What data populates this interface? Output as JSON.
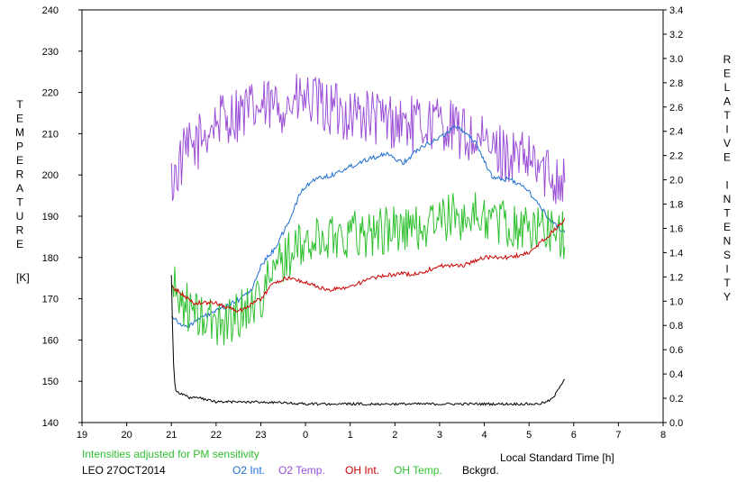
{
  "chart_data": {
    "type": "line",
    "x_ticks": [
      "19",
      "20",
      "21",
      "22",
      "23",
      "0",
      "1",
      "2",
      "3",
      "4",
      "5",
      "6",
      "7",
      "8"
    ],
    "y_left_ticks": [
      "140",
      "150",
      "160",
      "170",
      "180",
      "190",
      "200",
      "210",
      "220",
      "230",
      "240"
    ],
    "y_right_ticks": [
      "0.0",
      "0.2",
      "0.4",
      "0.6",
      "0.8",
      "1.0",
      "1.2",
      "1.4",
      "1.6",
      "1.8",
      "2.0",
      "2.2",
      "2.4",
      "2.6",
      "2.8",
      "3.0",
      "3.2",
      "3.4"
    ],
    "x_range": [
      19,
      32
    ],
    "y_left_range": [
      140,
      240
    ],
    "y_right_range": [
      0,
      3.4
    ],
    "left_label": "TEMPERATURE",
    "left_unit": "[K]",
    "right_label": "RELATIVE INTENSITY",
    "xlabel": "Local Standard Time [h]",
    "note": "Intensities adjusted for PM sensitivity",
    "station": "LEO 27OCT2014",
    "legend": [
      {
        "label": "O2 Int.",
        "color": "#1f6fd0"
      },
      {
        "label": "O2 Temp.",
        "color": "#9b4fd6"
      },
      {
        "label": "OH Int.",
        "color": "#cc0000"
      },
      {
        "label": "OH Temp.",
        "color": "#2fc02f"
      },
      {
        "label": "Bckgrd.",
        "color": "#000000"
      }
    ],
    "series": [
      {
        "name": "O2 Temp.",
        "axis": "left",
        "color": "#9b4fd6",
        "noise": 7,
        "x": [
          21.0,
          21.3,
          21.6,
          22.0,
          22.5,
          23.0,
          23.5,
          24.0,
          24.5,
          25.0,
          25.5,
          26.0,
          26.5,
          27.0,
          27.5,
          28.0,
          28.5,
          29.0,
          29.5,
          29.8
        ],
        "y": [
          198,
          205,
          208,
          213,
          215,
          216,
          217,
          218,
          216,
          215,
          214,
          213,
          212,
          213,
          210,
          207,
          205,
          203,
          200,
          199
        ]
      },
      {
        "name": "O2 Int.",
        "axis": "left",
        "color": "#1f6fd0",
        "noise": 0.6,
        "x": [
          21.0,
          21.3,
          21.6,
          22.0,
          22.4,
          22.8,
          23.0,
          23.3,
          23.6,
          23.9,
          24.2,
          24.6,
          25.0,
          25.4,
          25.8,
          26.2,
          26.6,
          27.0,
          27.4,
          27.8,
          28.2,
          28.6,
          29.0,
          29.4,
          29.8
        ],
        "y": [
          166,
          163,
          165,
          167,
          169,
          172,
          178,
          182,
          188,
          196,
          199,
          200,
          202,
          204,
          205,
          203,
          207,
          209,
          212,
          208,
          199,
          199,
          196,
          190,
          186
        ]
      },
      {
        "name": "OH Temp.",
        "axis": "left",
        "color": "#2fc02f",
        "noise": 6,
        "x": [
          21.0,
          21.5,
          22.0,
          22.5,
          23.0,
          23.5,
          24.0,
          24.5,
          25.0,
          25.5,
          26.0,
          26.5,
          27.0,
          27.5,
          28.0,
          28.5,
          29.0,
          29.5,
          29.8
        ],
        "y": [
          173,
          166,
          164,
          166,
          171,
          180,
          183,
          185,
          186,
          186,
          187,
          187,
          189,
          190,
          190,
          188,
          187,
          187,
          185
        ]
      },
      {
        "name": "OH Int.",
        "axis": "left",
        "color": "#cc0000",
        "noise": 0.5,
        "x": [
          21.0,
          21.5,
          22.0,
          22.5,
          23.0,
          23.3,
          23.6,
          24.0,
          24.5,
          25.0,
          25.5,
          26.0,
          26.5,
          27.0,
          27.5,
          28.0,
          28.5,
          29.0,
          29.3,
          29.6,
          29.8
        ],
        "y": [
          173,
          169,
          169,
          167,
          170,
          174,
          175,
          174,
          172,
          173,
          175,
          176,
          176,
          178,
          178,
          180,
          180,
          181,
          184,
          187,
          189
        ]
      },
      {
        "name": "Bckgrd.",
        "axis": "left",
        "color": "#000000",
        "noise": 0.3,
        "x": [
          21.0,
          21.03,
          21.06,
          21.1,
          21.2,
          21.4,
          21.6,
          22.0,
          22.5,
          23.0,
          24.0,
          25.0,
          26.0,
          27.0,
          28.0,
          28.8,
          29.2,
          29.4,
          29.55,
          29.7,
          29.82
        ],
        "y": [
          176,
          160,
          151,
          148,
          147,
          146,
          146,
          145,
          145,
          145,
          144.5,
          144.5,
          144.5,
          144.5,
          144.5,
          144.5,
          144.5,
          145,
          146,
          149,
          151
        ]
      }
    ]
  }
}
